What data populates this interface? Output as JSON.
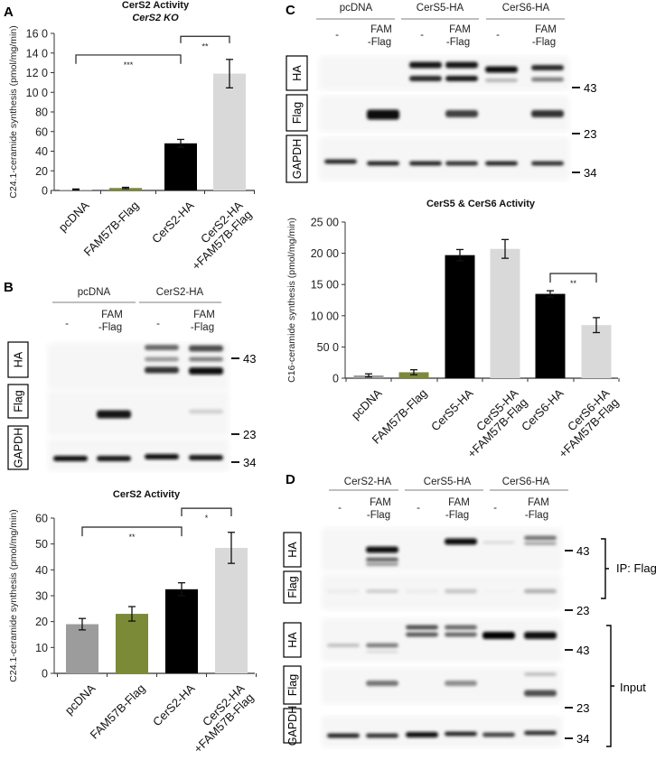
{
  "panel_letters": [
    "A",
    "B",
    "C",
    "D"
  ],
  "chart_data": [
    {
      "type": "bar",
      "title": "CerS2 Activity",
      "subtitle": "CerS2 KO",
      "xlabel": "",
      "ylabel": "C24.1-ceramide synthesis (pmol/mg/min)",
      "ylim": [
        0,
        160
      ],
      "ytick_values": [
        0,
        20,
        40,
        60,
        80,
        100,
        120,
        140,
        160
      ],
      "ytick_labels": [
        "0",
        "20",
        "40",
        "60",
        "80",
        "10 0",
        "12 0",
        "14 0",
        "16 0"
      ],
      "categories": [
        [
          "pcDNA"
        ],
        [
          "FAM57B-Flag"
        ],
        [
          "CerS2-HA"
        ],
        [
          "CerS2-HA",
          "+FAM57B-Flag"
        ]
      ],
      "values": [
        1,
        2.5,
        48,
        119
      ],
      "errors": [
        0.5,
        0.7,
        4,
        14.5
      ],
      "colors": [
        "#c8c8c8",
        "#7b8a36",
        "#000000",
        "#d9d9d9"
      ],
      "significance": [
        {
          "from": 0,
          "to": 2,
          "level": 138,
          "drop": 129,
          "label": "***"
        },
        {
          "from": 2,
          "to": 3,
          "level": 157,
          "drop": 150,
          "label": "**"
        }
      ]
    },
    {
      "type": "bar",
      "title": "CerS2 Activity",
      "xlabel": "",
      "ylabel": "C24.1-ceramide synthesis (pmol/mg/min)",
      "ylim": [
        0,
        60
      ],
      "ytick_values": [
        0,
        10,
        20,
        30,
        40,
        50,
        60
      ],
      "ytick_labels": [
        "0",
        "10",
        "20",
        "30",
        "40",
        "50",
        "60"
      ],
      "categories": [
        [
          "pcDNA"
        ],
        [
          "FAM57B-Flag"
        ],
        [
          "CerS2-HA"
        ],
        [
          "CerS2-HA",
          "+FAM57B-Flag"
        ]
      ],
      "values": [
        19,
        23,
        32.5,
        48.5
      ],
      "errors": [
        2.2,
        2.8,
        2.5,
        6
      ],
      "colors": [
        "#9c9c9c",
        "#7b8a36",
        "#000000",
        "#d9d9d9"
      ],
      "significance": [
        {
          "from": 0,
          "to": 2,
          "level": 56.5,
          "drop": 53,
          "label": "**"
        },
        {
          "from": 2,
          "to": 3,
          "level": 63.8,
          "drop": 60.7,
          "label": "*"
        }
      ]
    },
    {
      "type": "bar",
      "title": "CerS5 & CerS6  Activity",
      "xlabel": "",
      "ylabel": "C16-ceramide synthesis (pmol/mg/min)",
      "ylim": [
        0,
        2500
      ],
      "ytick_values": [
        0,
        500,
        1000,
        1500,
        2000,
        2500
      ],
      "ytick_labels": [
        "0",
        "50 0",
        "10 00",
        "15 00",
        "20 00",
        "25 00"
      ],
      "categories": [
        [
          "pcDNA"
        ],
        [
          "FAM57B-Flag"
        ],
        [
          "CerS5-HA"
        ],
        [
          "CerS5-HA",
          "+FAM57B-Flag"
        ],
        [
          "CerS6-HA"
        ],
        [
          "CerS6-HA",
          "+FAM57B-Flag"
        ]
      ],
      "values": [
        45,
        95,
        1970,
        2070,
        1350,
        850
      ],
      "errors": [
        25,
        40,
        90,
        150,
        50,
        120
      ],
      "colors": [
        "#9c9c9c",
        "#7b8a36",
        "#000000",
        "#d9d9d9",
        "#000000",
        "#d9d9d9"
      ],
      "significance": [
        {
          "from": 4,
          "to": 5,
          "level": 1676,
          "drop": 1532,
          "label": "**"
        }
      ]
    }
  ],
  "blots": {
    "B": {
      "groups": [
        "pcDNA",
        "CerS2-HA"
      ],
      "lanes": [
        [
          "-"
        ],
        [
          "FAM",
          "-Flag"
        ],
        [
          "-"
        ],
        [
          "FAM",
          "-Flag"
        ]
      ],
      "rows": [
        "HA",
        "Flag",
        "GAPDH"
      ],
      "markers": [
        "43",
        "23",
        "34"
      ]
    },
    "C": {
      "groups": [
        "pcDNA",
        "CerS5-HA",
        "CerS6-HA"
      ],
      "lanes": [
        [
          "-"
        ],
        [
          "FAM",
          "-Flag"
        ],
        [
          "-"
        ],
        [
          "FAM",
          "-Flag"
        ],
        [
          "-"
        ],
        [
          "FAM",
          "-Flag"
        ]
      ],
      "rows": [
        "HA",
        "Flag",
        "GAPDH"
      ],
      "markers": [
        "43",
        "23",
        "34"
      ]
    },
    "D": {
      "groups": [
        "CerS2-HA",
        "CerS5-HA",
        "CerS6-HA"
      ],
      "lanes": [
        [
          "-"
        ],
        [
          "FAM",
          "-Flag"
        ],
        [
          "-"
        ],
        [
          "FAM",
          "-Flag"
        ],
        [
          "-"
        ],
        [
          "FAM",
          "-Flag"
        ]
      ],
      "rows": [
        "HA",
        "Flag",
        "HA",
        "Flag",
        "GAPDH"
      ],
      "markers": [
        "43",
        "23",
        "43",
        "23",
        "34"
      ],
      "brackets": [
        "IP: Flag",
        "Input"
      ]
    }
  }
}
